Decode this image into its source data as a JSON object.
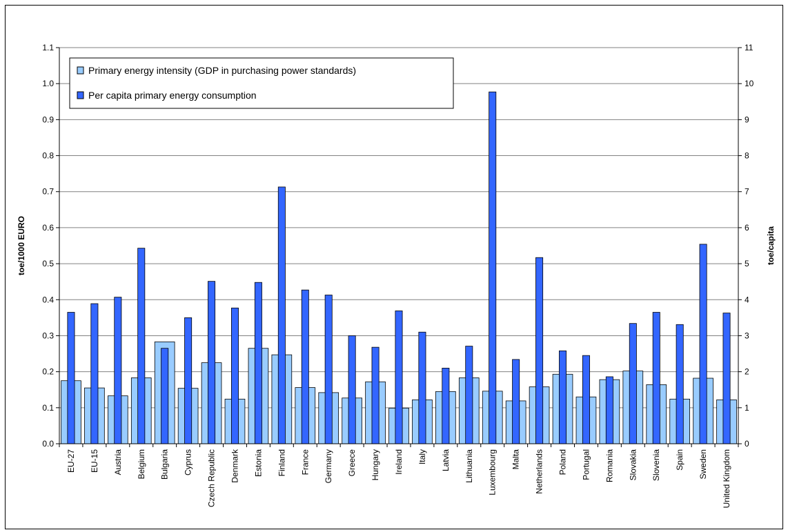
{
  "chart_data": {
    "type": "bar",
    "title": "",
    "ylabel": "toe/1000 EURO",
    "y2label": "toe/capita",
    "ylim": [
      0,
      1.1
    ],
    "y2lim": [
      0,
      11
    ],
    "yticks": [
      "0.0",
      "0.1",
      "0.2",
      "0.3",
      "0.4",
      "0.5",
      "0.6",
      "0.7",
      "0.8",
      "0.9",
      "1.0",
      "1.1"
    ],
    "y2ticks": [
      "0",
      "1",
      "2",
      "3",
      "4",
      "5",
      "6",
      "7",
      "8",
      "9",
      "10",
      "11"
    ],
    "grid": true,
    "legend_position": "top-left",
    "categories": [
      "EU-27",
      "EU-15",
      "Austria",
      "Belgium",
      "Bulgaria",
      "Cyprus",
      "Czech Republic",
      "Denmark",
      "Estonia",
      "Finland",
      "France",
      "Germany",
      "Greece",
      "Hungary",
      "Ireland",
      "Italy",
      "Latvia",
      "Lithuania",
      "Luxembourg",
      "Malta",
      "Netherlands",
      "Poland",
      "Portugal",
      "Romania",
      "Slovakia",
      "Slovenia",
      "Spain",
      "Sweden",
      "United Kingdom"
    ],
    "series": [
      {
        "name": "Primary energy intensity (GDP in purchasing power standards)",
        "axis": "left",
        "color": "#99ccff",
        "values": [
          0.175,
          0.155,
          0.133,
          0.183,
          0.283,
          0.154,
          0.225,
          0.124,
          0.265,
          0.247,
          0.156,
          0.142,
          0.127,
          0.172,
          0.099,
          0.122,
          0.145,
          0.183,
          0.146,
          0.119,
          0.158,
          0.193,
          0.13,
          0.178,
          0.202,
          0.164,
          0.124,
          0.182,
          0.122
        ]
      },
      {
        "name": "Per capita primary energy consumption",
        "axis": "right",
        "color": "#3366ff",
        "values": [
          3.65,
          3.89,
          4.07,
          5.43,
          2.65,
          3.5,
          4.51,
          3.77,
          4.48,
          7.13,
          4.27,
          4.13,
          3.0,
          2.68,
          3.69,
          3.1,
          2.1,
          2.71,
          9.77,
          2.34,
          5.17,
          2.58,
          2.45,
          1.86,
          3.34,
          3.65,
          3.31,
          5.54,
          3.63
        ]
      }
    ]
  }
}
